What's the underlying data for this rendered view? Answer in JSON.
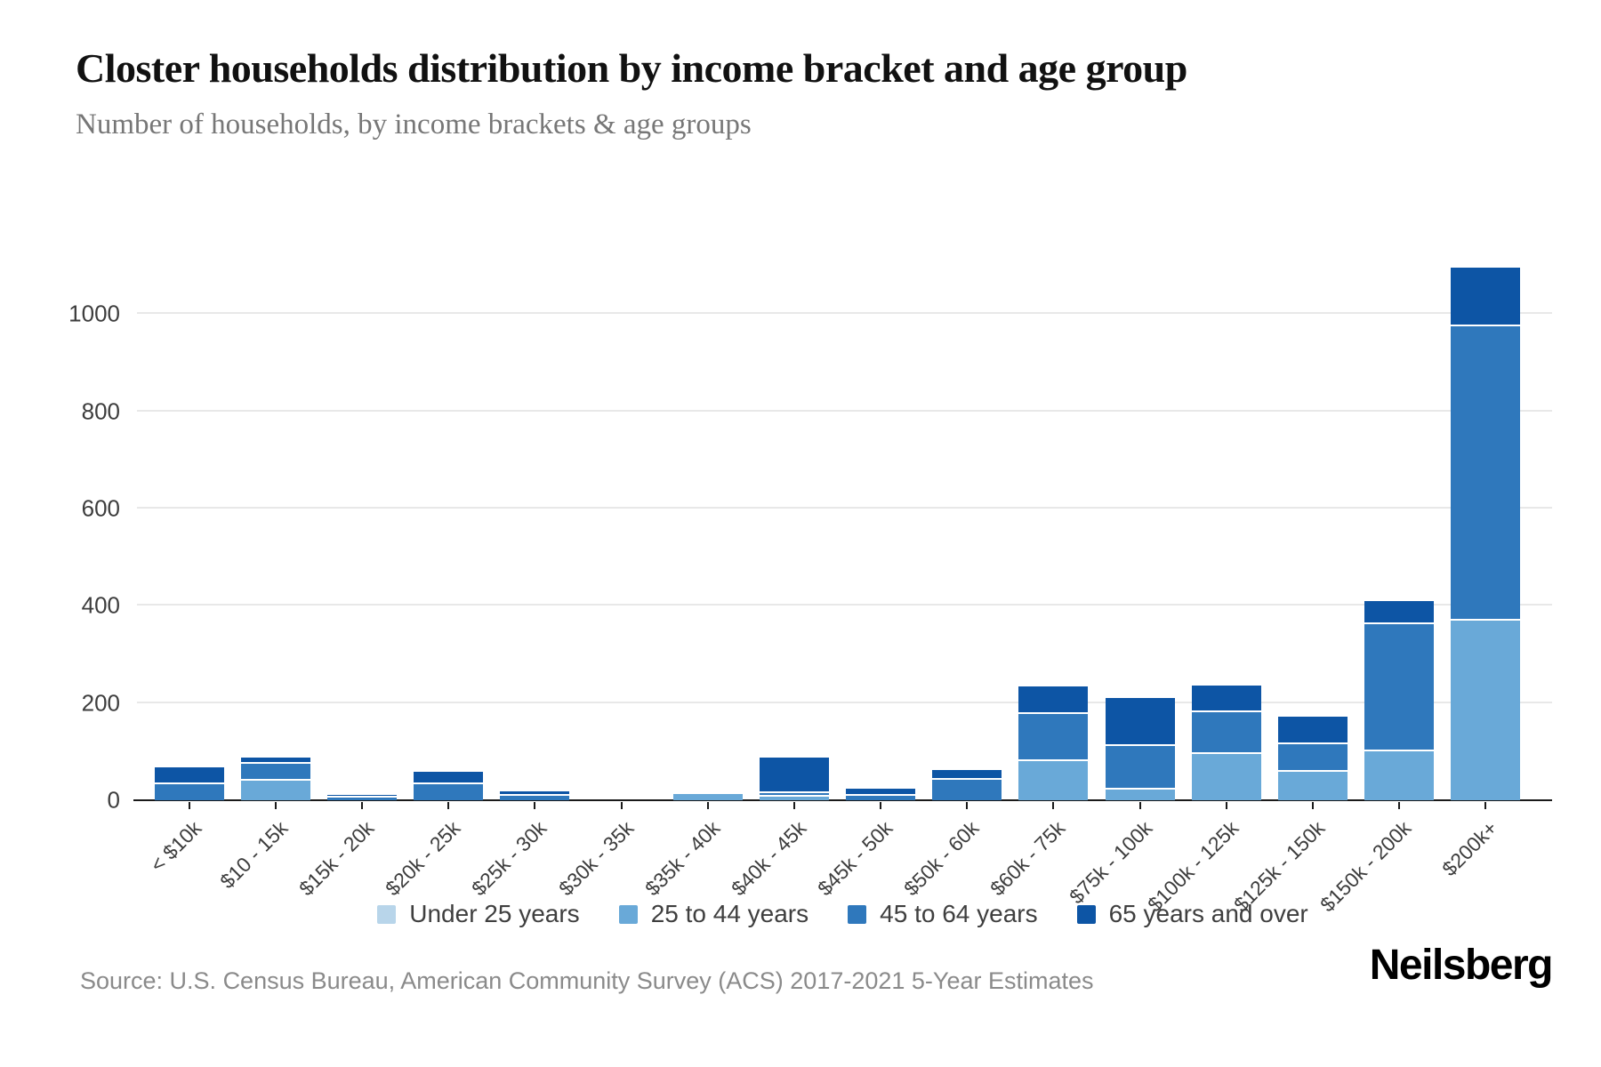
{
  "title": "Closter households distribution by income bracket and age group",
  "subtitle": "Number of households, by income brackets & age groups",
  "source": "Source: U.S. Census Bureau, American Community Survey (ACS) 2017-2021 5-Year Estimates",
  "brand": "Neilsberg",
  "chart_data": {
    "type": "bar",
    "stacked": true,
    "title": "Closter households distribution by income bracket and age group",
    "xlabel": "",
    "ylabel": "Number of households",
    "categories": [
      "< $10k",
      "$10 - 15k",
      "$15k - 20k",
      "$20k - 25k",
      "$25k - 30k",
      "$30k - 35k",
      "$35k - 40k",
      "$40k - 45k",
      "$45k - 50k",
      "$50k - 60k",
      "$60k - 75k",
      "$75k - 100k",
      "$100k - 125k",
      "$125k - 150k",
      "$150k - 200k",
      "$200k+"
    ],
    "series": [
      {
        "name": "Under 25 years",
        "color": "#b8d5ea",
        "values": [
          0,
          0,
          0,
          0,
          0,
          0,
          0,
          0,
          0,
          0,
          0,
          0,
          0,
          0,
          0,
          0
        ]
      },
      {
        "name": "25 to 44 years",
        "color": "#69a9d8",
        "values": [
          0,
          40,
          0,
          0,
          0,
          0,
          13,
          7,
          0,
          0,
          80,
          22,
          95,
          58,
          101,
          369
        ]
      },
      {
        "name": "45 to 64 years",
        "color": "#2f78bc",
        "values": [
          33,
          35,
          5,
          33,
          10,
          0,
          0,
          8,
          9,
          42,
          97,
          90,
          86,
          57,
          262,
          607
        ]
      },
      {
        "name": "65 years and over",
        "color": "#0d55a5",
        "values": [
          35,
          13,
          6,
          26,
          8,
          0,
          4,
          73,
          14,
          20,
          57,
          99,
          55,
          57,
          46,
          120
        ]
      }
    ],
    "totals": [
      68,
      88,
      11,
      59,
      18,
      0,
      17,
      88,
      23,
      62,
      234,
      211,
      236,
      172,
      409,
      1096
    ],
    "ylim": [
      0,
      1180
    ],
    "yticks": [
      0,
      200,
      400,
      600,
      800,
      1000
    ],
    "grid": true,
    "legend_position": "bottom"
  }
}
